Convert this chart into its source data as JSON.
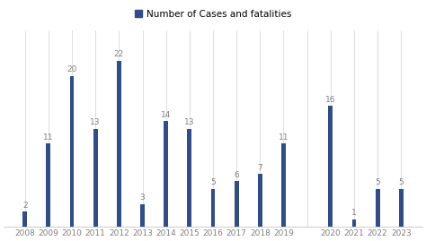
{
  "years": [
    "2008",
    "2009",
    "2010",
    "2011",
    "2012",
    "2013",
    "2014",
    "2015",
    "2016",
    "2017",
    "2018",
    "2019",
    "",
    "2020",
    "2021",
    "2022",
    "2023"
  ],
  "values": [
    2,
    11,
    20,
    13,
    22,
    3,
    14,
    13,
    5,
    6,
    7,
    11,
    0,
    16,
    1,
    5,
    5
  ],
  "bar_visible": [
    1,
    1,
    1,
    1,
    1,
    1,
    1,
    1,
    1,
    1,
    1,
    1,
    0,
    1,
    1,
    1,
    1
  ],
  "bar_color": "#2e4d8a",
  "legend_label": "Number of Cases and fatalities",
  "background_color": "#ffffff",
  "ylim": [
    0,
    26
  ],
  "bar_width": 0.18,
  "label_fontsize": 6.5,
  "tick_fontsize": 6.5,
  "legend_fontsize": 7.5,
  "grid_color": "#d0d0d0",
  "text_color": "#808080"
}
